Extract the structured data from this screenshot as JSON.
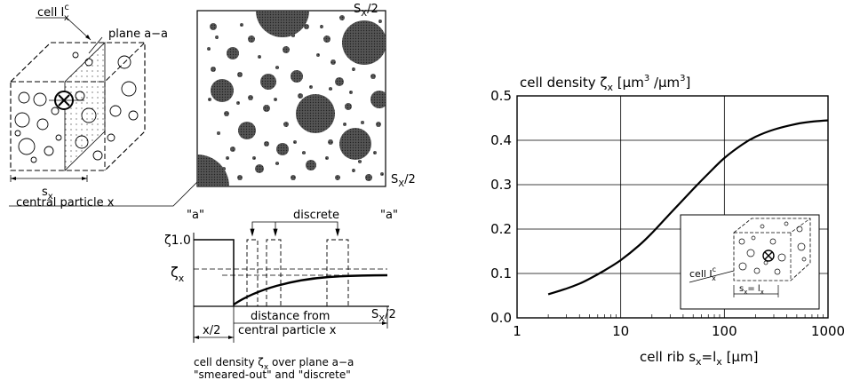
{
  "left": {
    "cell_label": "cell I",
    "cell_label_sup": "c",
    "cell_label_sub": "x",
    "plane_label": "plane a−a",
    "sx_label": "s",
    "sx_sub": "x",
    "central_label": "central particle x",
    "section_top_label": "S",
    "section_top_sub": "X",
    "section_top_tail": "/2",
    "section_right_label": "S",
    "section_right_sub": "X",
    "section_right_tail": "/2",
    "a_left": "\"a\"",
    "a_right": "\"a\"",
    "discrete_label": "discrete",
    "zeta_one": "ζ1.0",
    "zeta_x": "ζ",
    "zeta_x_sub": "x",
    "distance_label_1": "distance from",
    "distance_label_2": "central particle x",
    "half_label": "x/2",
    "axis_end_label": "S",
    "axis_end_sub": "X",
    "axis_end_tail": "/2",
    "caption_1": "cell density ζ",
    "caption_1_sub": "x",
    "caption_1_tail": " over plane a−a",
    "caption_2": "\"smeared-out\" and \"discrete\""
  },
  "chart_data": {
    "type": "line",
    "title": "cell density ζx [μm³/μm³]",
    "xlabel": "cell rib sx=lx [μm]",
    "ylabel": "cell density ζx [μm³/μm³]",
    "x_scale": "log",
    "xlim": [
      1,
      1000
    ],
    "ylim": [
      0,
      0.5
    ],
    "x_ticks": [
      "1",
      "10",
      "100",
      "1000"
    ],
    "y_ticks": [
      "0.0",
      "0.1",
      "0.2",
      "0.3",
      "0.4",
      "0.5"
    ],
    "grid": true,
    "series": [
      {
        "x": [
          2,
          3,
          4,
          5,
          7,
          10,
          15,
          20,
          30,
          50,
          70,
          100,
          150,
          200,
          300,
          500,
          700,
          1000
        ],
        "y": [
          0.053,
          0.066,
          0.077,
          0.088,
          0.107,
          0.13,
          0.163,
          0.191,
          0.235,
          0.29,
          0.325,
          0.36,
          0.391,
          0.408,
          0.424,
          0.437,
          0.442,
          0.445
        ]
      }
    ],
    "inset": {
      "cell_label": "cell I",
      "cell_label_sup": "c",
      "cell_label_sub": "x",
      "rib_label": "s",
      "rib_sub1": "x",
      "rib_mid": "= l",
      "rib_sub2": "x"
    }
  },
  "chart_text": {
    "title_main": "cell density ζ",
    "title_sub": "x",
    "title_units": " [μm",
    "title_sup1": "3",
    "title_mid": " /μm",
    "title_sup2": "3",
    "title_end": "]",
    "xlabel_main": "cell rib  s",
    "xlabel_sub1": "x",
    "xlabel_mid": "=l",
    "xlabel_sub2": "x",
    "xlabel_end": " [μm]"
  }
}
